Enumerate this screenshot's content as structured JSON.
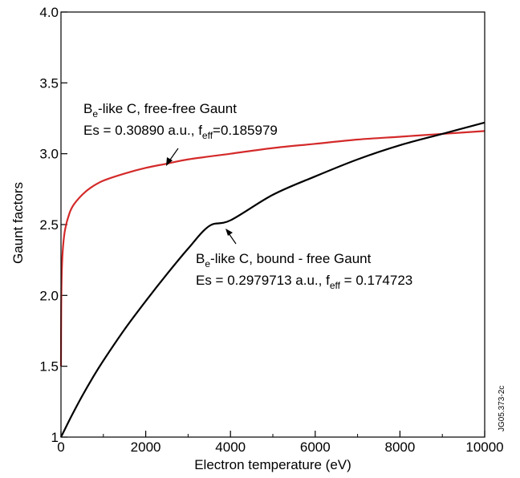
{
  "chart_data": {
    "type": "line",
    "xlabel": "Electron temperature (eV)",
    "ylabel": "Gaunt factors",
    "xlim": [
      0,
      10000
    ],
    "ylim": [
      1.0,
      4.0
    ],
    "x_ticks": [
      0,
      2000,
      4000,
      6000,
      8000,
      10000
    ],
    "x_tick_labels": [
      "0",
      "2000",
      "4000",
      "6000",
      "8000",
      "10000"
    ],
    "y_ticks": [
      1.0,
      1.5,
      2.0,
      2.5,
      3.0,
      3.5,
      4.0
    ],
    "y_tick_labels": [
      "1",
      "1.5",
      "2.0",
      "2.5",
      "3.0",
      "3.5",
      "4.0"
    ],
    "grid": false,
    "series": [
      {
        "color": "#d42a2a",
        "x": [
          0,
          5,
          20,
          50,
          100,
          200,
          300,
          500,
          700,
          1000,
          1500,
          2000,
          2500,
          3000,
          4000,
          5000,
          6000,
          7000,
          8000,
          9000,
          10000
        ],
        "y": [
          1.5,
          1.9,
          2.18,
          2.35,
          2.47,
          2.58,
          2.64,
          2.71,
          2.76,
          2.81,
          2.86,
          2.9,
          2.93,
          2.96,
          3.0,
          3.04,
          3.07,
          3.1,
          3.12,
          3.14,
          3.16
        ]
      },
      {
        "color": "#000000",
        "x": [
          0,
          100,
          250,
          500,
          750,
          1000,
          1500,
          2000,
          2500,
          3000,
          3500,
          4000,
          5000,
          6000,
          7000,
          8000,
          9000,
          10000
        ],
        "y": [
          1.0,
          1.06,
          1.15,
          1.29,
          1.42,
          1.54,
          1.76,
          1.96,
          2.15,
          2.33,
          2.49,
          2.53,
          2.71,
          2.84,
          2.96,
          3.06,
          3.14,
          3.22
        ]
      }
    ],
    "annotations": [
      {
        "line1_main": "B",
        "line1_sub": "e",
        "line1_rest": "-like C, free-free Gaunt",
        "line2_pre": "Es = 0.30890 a.u., f",
        "line2_sub": "eff",
        "line2_post": "=0.185979"
      },
      {
        "line1_main": "B",
        "line1_sub": "e",
        "line1_rest": "-like C, bound - free Gaunt",
        "line2_pre": "Es = 0.2979713 a.u., f",
        "line2_sub": "eff",
        "line2_post": " = 0.174723"
      }
    ],
    "side_code": "JG05.373-2c"
  }
}
